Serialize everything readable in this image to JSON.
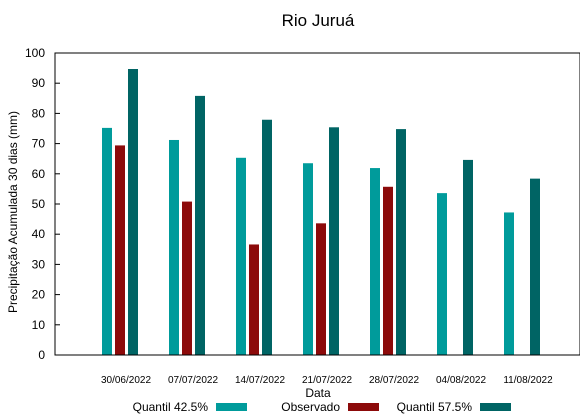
{
  "chart_data": {
    "type": "bar",
    "title": "Rio Juruá",
    "xlabel": "Data",
    "ylabel": "Precipitação Acumulada 30 dias (mm)",
    "ylim": [
      0,
      100
    ],
    "yticks": [
      0,
      10,
      20,
      30,
      40,
      50,
      60,
      70,
      80,
      90,
      100
    ],
    "grid": false,
    "legend_position": "bottom",
    "categories": [
      "30/06/2022",
      "07/07/2022",
      "14/07/2022",
      "21/07/2022",
      "28/07/2022",
      "04/08/2022",
      "11/08/2022"
    ],
    "series": [
      {
        "name": "Quantil 42.5%",
        "color": "#009b9b",
        "values": [
          75.2,
          71.2,
          65.3,
          63.5,
          61.9,
          53.6,
          47.2
        ]
      },
      {
        "name": "Observado",
        "color": "#8c0a0a",
        "values": [
          69.4,
          50.8,
          36.6,
          43.6,
          55.7,
          null,
          null
        ]
      },
      {
        "name": "Quantil 57.5%",
        "color": "#006464",
        "values": [
          94.7,
          85.8,
          77.9,
          75.4,
          74.8,
          64.6,
          58.4
        ]
      }
    ]
  }
}
